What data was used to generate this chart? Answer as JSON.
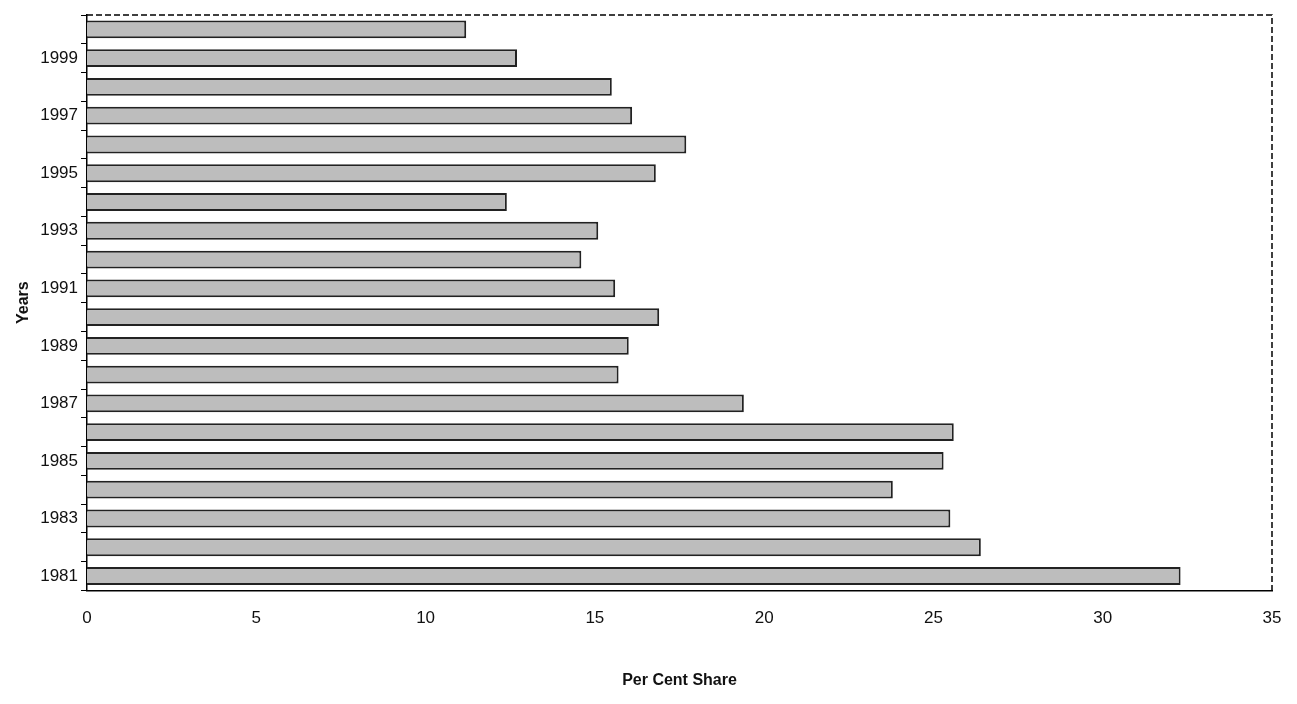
{
  "chart_data": {
    "type": "bar",
    "orientation": "horizontal",
    "xlabel": "Per Cent Share",
    "ylabel": "Years",
    "categories": [
      null,
      "1999",
      null,
      "1997",
      null,
      "1995",
      null,
      "1993",
      null,
      "1991",
      null,
      "1989",
      null,
      "1987",
      null,
      "1985",
      null,
      "1983",
      null,
      "1981"
    ],
    "values": [
      11.2,
      12.7,
      15.5,
      16.1,
      17.7,
      16.8,
      12.4,
      15.1,
      14.6,
      15.6,
      16.9,
      16.0,
      15.7,
      19.4,
      25.6,
      25.3,
      23.8,
      25.5,
      26.4,
      32.3
    ],
    "color": "#bdbdbd",
    "xlim": [
      0,
      35
    ],
    "xticks": [
      0,
      5,
      10,
      15,
      20,
      25,
      30,
      35
    ],
    "grid": false,
    "legend": false
  }
}
